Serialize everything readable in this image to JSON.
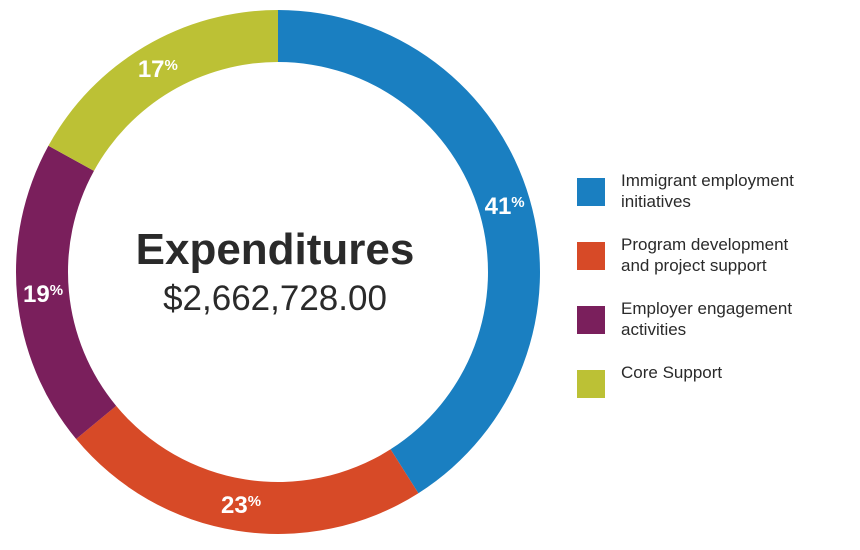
{
  "chart_data": {
    "type": "pie",
    "variant": "donut",
    "center_title": "Expenditures",
    "center_amount": "$2,662,728.00",
    "slices": [
      {
        "label_lines": [
          "Immigrant employment",
          "initiatives"
        ],
        "value": 41,
        "display": "41",
        "unit": "%",
        "color": "#1a7fc1"
      },
      {
        "label_lines": [
          "Program development",
          "and project support"
        ],
        "value": 23,
        "display": "23",
        "unit": "%",
        "color": "#d74a27"
      },
      {
        "label_lines": [
          "Employer engagement",
          "activities"
        ],
        "value": 19,
        "display": "19",
        "unit": "%",
        "color": "#7a1f5c"
      },
      {
        "label_lines": [
          "Core Support"
        ],
        "value": 17,
        "display": "17",
        "unit": "%",
        "color": "#bcc135"
      }
    ],
    "legend_position": "right"
  }
}
